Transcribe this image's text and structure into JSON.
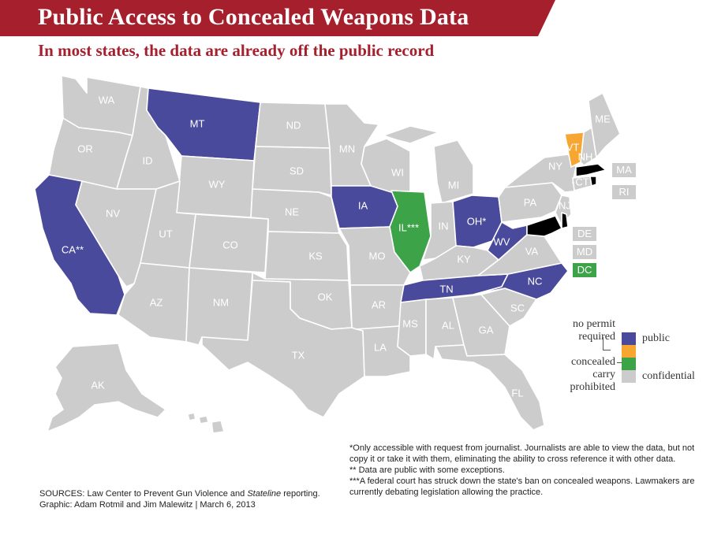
{
  "title": "Public Access to Concealed Weapons Data",
  "subtitle": "In most states, the data are already off the public record",
  "colors": {
    "public": "#4a4a9c",
    "no_permit_required": "#f7a631",
    "concealed_carry_prohibited": "#3da349",
    "confidential": "#cccccc",
    "brand": "#a51f2d"
  },
  "legend": {
    "group_no_permit": "no permit required",
    "group_no_permit_lines": [
      "no permit",
      "required"
    ],
    "group_prohibited_lines": [
      "concealed",
      "carry",
      "prohibited"
    ],
    "public": "public",
    "confidential": "confidential"
  },
  "states": {
    "WA": {
      "label": "WA",
      "status": "confidential"
    },
    "OR": {
      "label": "OR",
      "status": "confidential"
    },
    "CA": {
      "label": "CA**",
      "status": "public"
    },
    "ID": {
      "label": "ID",
      "status": "confidential"
    },
    "NV": {
      "label": "NV",
      "status": "confidential"
    },
    "MT": {
      "label": "MT",
      "status": "public"
    },
    "WY": {
      "label": "WY",
      "status": "confidential"
    },
    "UT": {
      "label": "UT",
      "status": "confidential"
    },
    "AZ": {
      "label": "AZ",
      "status": "confidential"
    },
    "CO": {
      "label": "CO",
      "status": "confidential"
    },
    "NM": {
      "label": "NM",
      "status": "confidential"
    },
    "ND": {
      "label": "ND",
      "status": "confidential"
    },
    "SD": {
      "label": "SD",
      "status": "confidential"
    },
    "NE": {
      "label": "NE",
      "status": "confidential"
    },
    "KS": {
      "label": "KS",
      "status": "confidential"
    },
    "OK": {
      "label": "OK",
      "status": "confidential"
    },
    "TX": {
      "label": "TX",
      "status": "confidential"
    },
    "MN": {
      "label": "MN",
      "status": "confidential"
    },
    "IA": {
      "label": "IA",
      "status": "public"
    },
    "MO": {
      "label": "MO",
      "status": "confidential"
    },
    "AR": {
      "label": "AR",
      "status": "confidential"
    },
    "LA": {
      "label": "LA",
      "status": "confidential"
    },
    "WI": {
      "label": "WI",
      "status": "confidential"
    },
    "IL": {
      "label": "IL***",
      "status": "concealed_carry_prohibited"
    },
    "MI": {
      "label": "MI",
      "status": "confidential"
    },
    "IN": {
      "label": "IN",
      "status": "confidential"
    },
    "OH": {
      "label": "OH*",
      "status": "public"
    },
    "KY": {
      "label": "KY",
      "status": "confidential"
    },
    "TN": {
      "label": "TN",
      "status": "public"
    },
    "MS": {
      "label": "MS",
      "status": "confidential"
    },
    "AL": {
      "label": "AL",
      "status": "confidential"
    },
    "GA": {
      "label": "GA",
      "status": "confidential"
    },
    "FL": {
      "label": "FL",
      "status": "confidential"
    },
    "SC": {
      "label": "SC",
      "status": "confidential"
    },
    "NC": {
      "label": "NC",
      "status": "public"
    },
    "VA": {
      "label": "VA",
      "status": "confidential"
    },
    "WV": {
      "label": "WV",
      "status": "public"
    },
    "PA": {
      "label": "PA",
      "status": "confidential"
    },
    "NY": {
      "label": "NY",
      "status": "confidential"
    },
    "VT": {
      "label": "VT",
      "status": "no_permit_required"
    },
    "NH": {
      "label": "NH",
      "status": "confidential"
    },
    "ME": {
      "label": "ME",
      "status": "confidential"
    },
    "CT": {
      "label": "CT",
      "status": "confidential"
    },
    "NJ": {
      "label": "NJ",
      "status": "confidential"
    },
    "AK": {
      "label": "AK",
      "status": "confidential"
    },
    "HI": {
      "label": "HI",
      "status": "confidential"
    }
  },
  "small_states": {
    "MA": {
      "label": "MA",
      "status": "confidential"
    },
    "RI": {
      "label": "RI",
      "status": "confidential"
    },
    "DE": {
      "label": "DE",
      "status": "confidential"
    },
    "MD": {
      "label": "MD",
      "status": "confidential"
    },
    "DC": {
      "label": "DC",
      "status": "concealed_carry_prohibited"
    }
  },
  "notes": [
    "*Only accessible with request from journalist. Journalists are able to view the data, but not copy it or take it with them, eliminating the ability to cross reference it with other data.",
    "** Data are public with some exceptions.",
    "***A federal court has struck down the state's ban on concealed weapons. Lawmakers are currently debating legislation allowing the practice."
  ],
  "sources": {
    "line1_prefix": "SOURCES: Law Center to Prevent Gun Violence and ",
    "line1_italic": "Stateline",
    "line1_suffix": " reporting.",
    "line2": "Graphic: Adam Rotmil and Jim Malewitz | March 6, 2013"
  }
}
